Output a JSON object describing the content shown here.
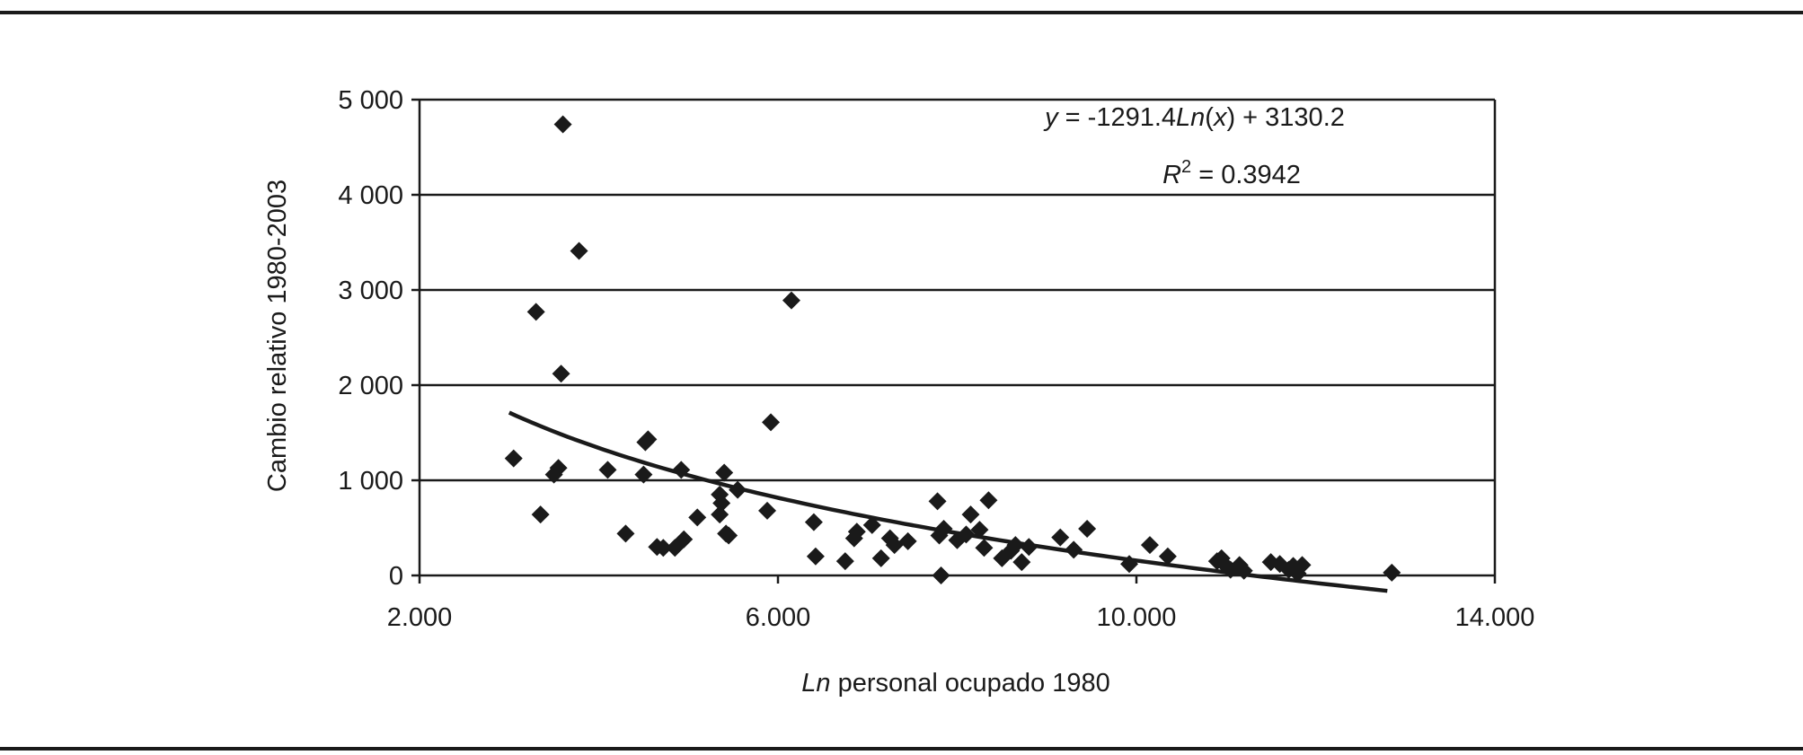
{
  "chart_data": {
    "type": "scatter",
    "xlabel_italic": "Ln",
    "xlabel_rest": " personal ocupado 1980",
    "ylabel": "Cambio relativo 1980-2003",
    "xlim": [
      2.0,
      14.0
    ],
    "ylim": [
      0,
      5000
    ],
    "x_ticks": [
      2.0,
      6.0,
      10.0,
      14.0
    ],
    "x_tick_labels": [
      "2.000",
      "6.000",
      "10.000",
      "14.000"
    ],
    "y_ticks": [
      0,
      1000,
      2000,
      3000,
      4000,
      5000
    ],
    "y_tick_labels": [
      "0",
      "1 000",
      "2 000",
      "3 000",
      "4 000",
      "5 000"
    ],
    "grid": "horizontal",
    "marker": "diamond",
    "color": "#1a1a1a",
    "points": [
      {
        "x": 3.05,
        "y": 1230
      },
      {
        "x": 3.3,
        "y": 2770
      },
      {
        "x": 3.35,
        "y": 640
      },
      {
        "x": 3.5,
        "y": 1060
      },
      {
        "x": 3.55,
        "y": 1130
      },
      {
        "x": 3.58,
        "y": 2120
      },
      {
        "x": 3.6,
        "y": 4740
      },
      {
        "x": 3.78,
        "y": 3410
      },
      {
        "x": 4.1,
        "y": 1110
      },
      {
        "x": 4.3,
        "y": 440
      },
      {
        "x": 4.5,
        "y": 1060
      },
      {
        "x": 4.52,
        "y": 1400
      },
      {
        "x": 4.55,
        "y": 1430
      },
      {
        "x": 4.65,
        "y": 300
      },
      {
        "x": 4.72,
        "y": 290
      },
      {
        "x": 4.85,
        "y": 290
      },
      {
        "x": 4.92,
        "y": 1110
      },
      {
        "x": 4.95,
        "y": 380
      },
      {
        "x": 5.1,
        "y": 610
      },
      {
        "x": 5.35,
        "y": 850
      },
      {
        "x": 5.35,
        "y": 640
      },
      {
        "x": 5.37,
        "y": 760
      },
      {
        "x": 5.4,
        "y": 1080
      },
      {
        "x": 5.42,
        "y": 440
      },
      {
        "x": 5.45,
        "y": 420
      },
      {
        "x": 5.55,
        "y": 900
      },
      {
        "x": 5.88,
        "y": 680
      },
      {
        "x": 5.92,
        "y": 1610
      },
      {
        "x": 6.15,
        "y": 2890
      },
      {
        "x": 6.4,
        "y": 560
      },
      {
        "x": 6.42,
        "y": 200
      },
      {
        "x": 6.75,
        "y": 150
      },
      {
        "x": 6.85,
        "y": 390
      },
      {
        "x": 6.88,
        "y": 460
      },
      {
        "x": 7.05,
        "y": 530
      },
      {
        "x": 7.15,
        "y": 180
      },
      {
        "x": 7.25,
        "y": 390
      },
      {
        "x": 7.3,
        "y": 320
      },
      {
        "x": 7.45,
        "y": 360
      },
      {
        "x": 7.78,
        "y": 780
      },
      {
        "x": 7.8,
        "y": 420
      },
      {
        "x": 7.82,
        "y": 0
      },
      {
        "x": 7.85,
        "y": 490
      },
      {
        "x": 8.0,
        "y": 370
      },
      {
        "x": 8.1,
        "y": 430
      },
      {
        "x": 8.15,
        "y": 640
      },
      {
        "x": 8.25,
        "y": 480
      },
      {
        "x": 8.3,
        "y": 290
      },
      {
        "x": 8.35,
        "y": 790
      },
      {
        "x": 8.5,
        "y": 180
      },
      {
        "x": 8.6,
        "y": 260
      },
      {
        "x": 8.65,
        "y": 320
      },
      {
        "x": 8.72,
        "y": 140
      },
      {
        "x": 8.8,
        "y": 300
      },
      {
        "x": 9.15,
        "y": 400
      },
      {
        "x": 9.3,
        "y": 270
      },
      {
        "x": 9.45,
        "y": 490
      },
      {
        "x": 9.92,
        "y": 120
      },
      {
        "x": 10.15,
        "y": 320
      },
      {
        "x": 10.35,
        "y": 200
      },
      {
        "x": 10.9,
        "y": 150
      },
      {
        "x": 10.95,
        "y": 180
      },
      {
        "x": 11.0,
        "y": 100
      },
      {
        "x": 11.05,
        "y": 60
      },
      {
        "x": 11.15,
        "y": 110
      },
      {
        "x": 11.2,
        "y": 50
      },
      {
        "x": 11.5,
        "y": 140
      },
      {
        "x": 11.6,
        "y": 120
      },
      {
        "x": 11.7,
        "y": 60
      },
      {
        "x": 11.75,
        "y": 100
      },
      {
        "x": 11.8,
        "y": 20
      },
      {
        "x": 11.85,
        "y": 110
      },
      {
        "x": 12.85,
        "y": 30
      }
    ],
    "trendline": {
      "type": "logarithmic",
      "a": -1291.4,
      "b": 3130.2,
      "x_range": [
        3.0,
        12.8
      ]
    },
    "equation": {
      "y": "y",
      "rest1": " = -1291.4",
      "ln": "Ln",
      "open": "(",
      "x": "x",
      "rest2": ") + 3130.2"
    },
    "r_squared": {
      "r": "R",
      "sup": "2",
      "rest": " = 0.3942"
    }
  }
}
